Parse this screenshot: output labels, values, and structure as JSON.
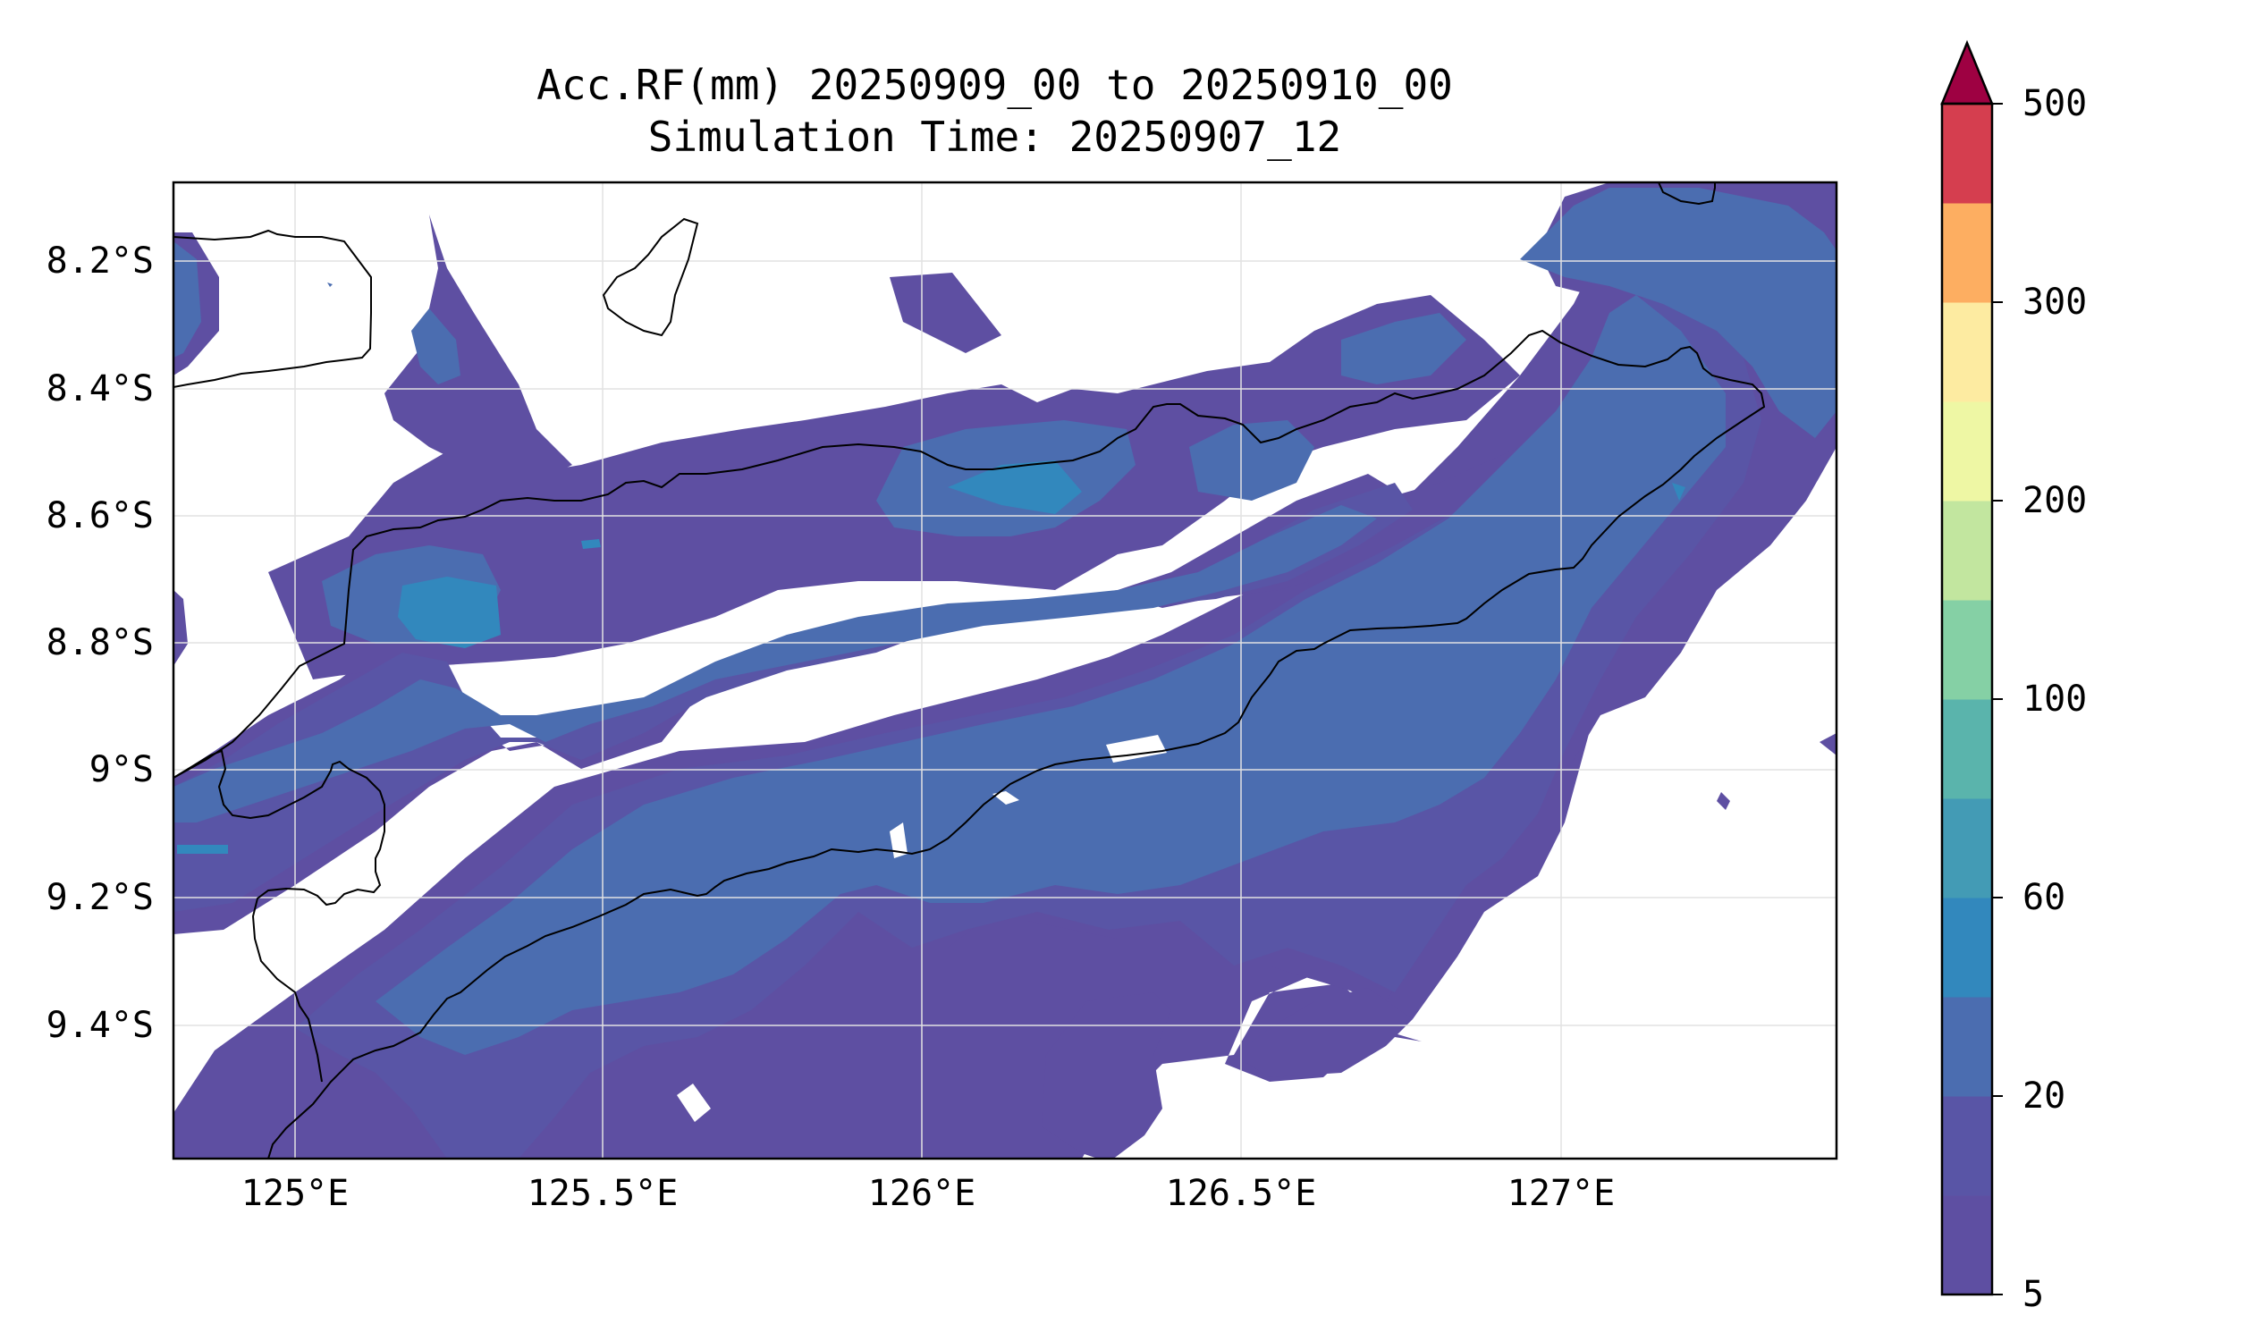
{
  "title": {
    "line1": "Acc.RF(mm) 20250909_00 to 20250910_00",
    "line2": "Simulation Time: 20250907_12"
  },
  "map": {
    "lon_range": [
      124.82,
      127.42
    ],
    "lat_range": [
      -9.58,
      -8.08
    ],
    "lon_ticks": [
      "125°E",
      "125.5°E",
      "126°E",
      "126.5°E",
      "127°E"
    ],
    "lat_ticks": [
      "8.2°S",
      "8.4°S",
      "8.6°S",
      "8.8°S",
      "9°S",
      "9.2°S",
      "9.4°S"
    ],
    "grid": true,
    "fill_colors": {
      "5-10": "#5e4fa2",
      "10-20": "#5955a6",
      "20-40": "#4b6db0",
      "40-60": "#3288bd"
    },
    "coastline_color": "#000000"
  },
  "colorbar": {
    "tick_labels": [
      "500",
      "300",
      "200",
      "100",
      "60",
      "20",
      "5"
    ],
    "colors": [
      "#5e4fa2",
      "#5955a6",
      "#4b6db0",
      "#3288bd",
      "#439bb5",
      "#5ab4ac",
      "#85d0a5",
      "#c2e69f",
      "#eef7a4",
      "#fdeba1",
      "#fdae61",
      "#d53e4f"
    ],
    "extend_color": "#9e0142",
    "extend": "max"
  }
}
